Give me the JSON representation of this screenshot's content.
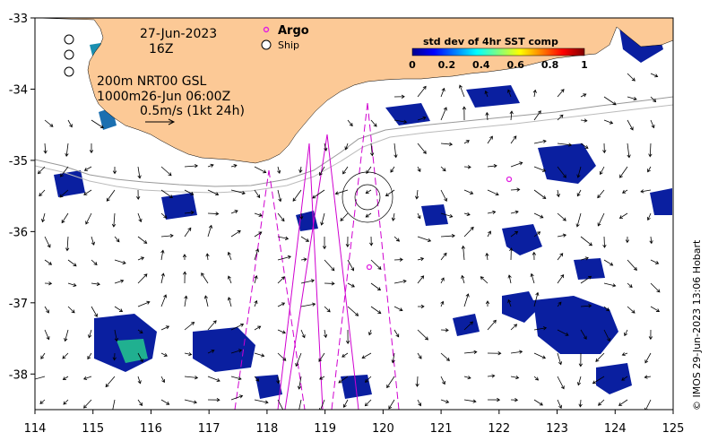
{
  "map": {
    "lon_range": [
      114,
      125
    ],
    "lat_range": [
      -38.5,
      -33
    ],
    "lon_ticks": [
      "114",
      "115",
      "116",
      "117",
      "118",
      "119",
      "120",
      "121",
      "122",
      "123",
      "124",
      "125"
    ],
    "lat_ticks": [
      "-33",
      "-34",
      "-35",
      "-36",
      "-37",
      "-38"
    ],
    "land_color": "#fcc996",
    "sst_color": "#0a1fa0"
  },
  "annotations": {
    "date": "27-Jun-2023",
    "time": "16Z",
    "line1": "200m  NRT00 GSL",
    "line2": "1000m26-Jun 06:00Z",
    "scale_label": "0.5m/s (1kt 24h)"
  },
  "symbols": {
    "argo_label": "Argo",
    "ship_label": "Ship",
    "argo_color": "#e020e0"
  },
  "colorbar": {
    "title": "std dev of 4hr SST comp",
    "ticks": [
      "0",
      "0.2",
      "0.4",
      "0.6",
      "0.8",
      "1"
    ]
  },
  "credit": "© IMOS 29-Jun-2023 13:06 Hobart"
}
